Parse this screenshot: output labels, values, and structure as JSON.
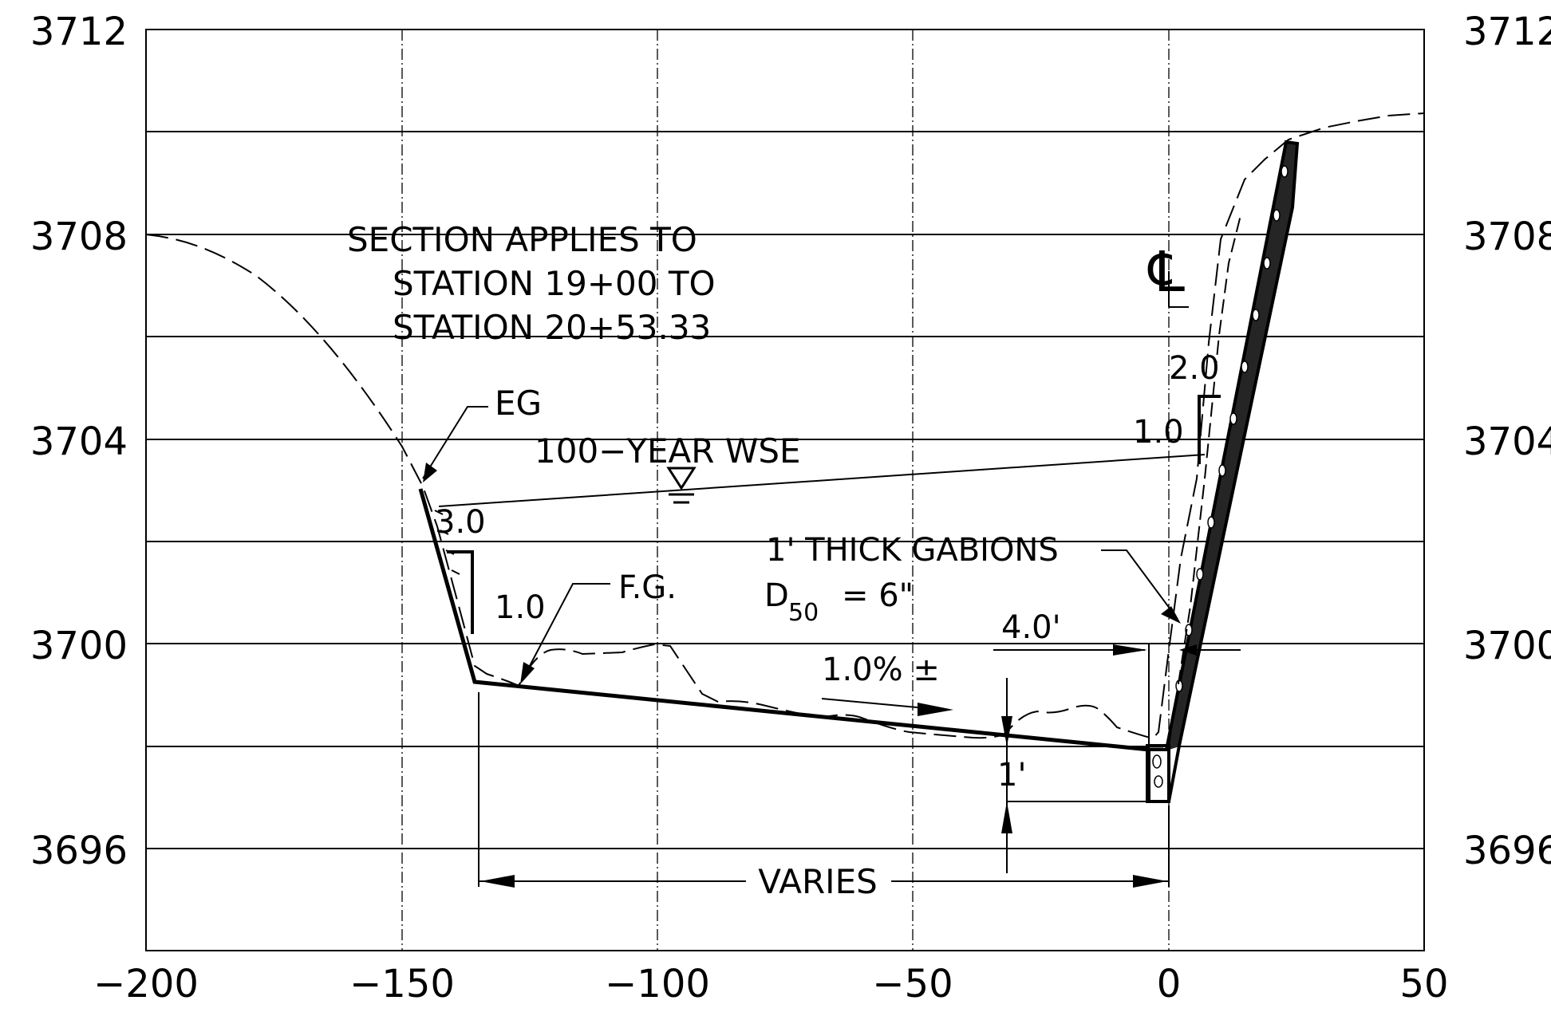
{
  "axes": {
    "x_ticks": [
      "−200",
      "−150",
      "−100",
      "−50",
      "0",
      "50"
    ],
    "y_ticks_left": [
      "3712",
      "3708",
      "3704",
      "3700",
      "3696"
    ],
    "y_ticks_right": [
      "3712",
      "3708",
      "3704",
      "3700",
      "3696"
    ],
    "x_range": [
      -200,
      50
    ],
    "y_range": [
      3694,
      3712
    ]
  },
  "notes": {
    "section_line1": "SECTION APPLIES TO",
    "section_line2": "STATION 19+00 TO",
    "section_line3": "STATION 20+53.33",
    "centerline_symbol": "℄",
    "eg": "EG",
    "wse": "100−YEAR WSE",
    "fg": "F.G.",
    "slope_left_h": "3.0",
    "slope_left_v": "1.0",
    "slope_right_h": "2.0",
    "slope_right_v": "1.0",
    "gabions": "1' THICK GABIONS",
    "d50_prefix": "D",
    "d50_sub": "50",
    "d50_value": "= 6\"",
    "width_4ft": "4.0'",
    "grade": "1.0% ±",
    "depth_1ft": "1'",
    "varies": "VARIES"
  },
  "profile_data": {
    "existing_ground": [
      [
        -200,
        3708
      ],
      [
        -190,
        3707.6
      ],
      [
        -180,
        3707.2
      ],
      [
        -170,
        3706.5
      ],
      [
        -160,
        3705.5
      ],
      [
        -150,
        3704.1
      ],
      [
        -145,
        3703.1
      ],
      [
        -138,
        3700
      ],
      [
        -132,
        3699.5
      ],
      [
        -127,
        3699.3
      ],
      [
        -120,
        3699.9
      ],
      [
        -110,
        3699.8
      ],
      [
        -100,
        3700.1
      ],
      [
        -90,
        3698.8
      ],
      [
        -80,
        3699.2
      ],
      [
        -70,
        3698.7
      ],
      [
        -60,
        3698.6
      ],
      [
        -50,
        3698.4
      ],
      [
        -40,
        3698.3
      ],
      [
        -30,
        3698.4
      ],
      [
        -26,
        3698.8
      ],
      [
        -15,
        3699
      ],
      [
        -5,
        3698.5
      ],
      [
        0,
        3698.2
      ],
      [
        3,
        3700
      ],
      [
        8,
        3703
      ],
      [
        12,
        3707
      ],
      [
        17,
        3708.8
      ],
      [
        25,
        3709.9
      ],
      [
        40,
        3710.3
      ],
      [
        50,
        3710.4
      ]
    ],
    "finished_grade": [
      [
        -145,
        3703.1
      ],
      [
        -135,
        3699.3
      ],
      [
        -3,
        3697.9
      ],
      [
        5,
        3699.4
      ],
      [
        23,
        3709.8
      ]
    ],
    "wse_line": [
      [
        -143,
        3702.8
      ],
      [
        12,
        3703.8
      ]
    ],
    "gabion_bottom_elevation": 3697,
    "gabion_top_elevation": 3709.8
  }
}
